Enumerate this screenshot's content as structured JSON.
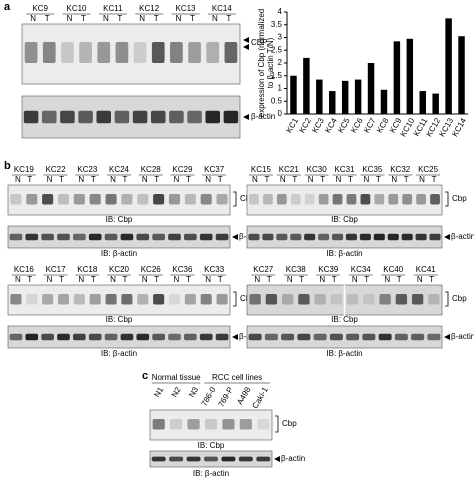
{
  "panel_a": {
    "label": "a",
    "samples": [
      "KC9",
      "KC10",
      "KC11",
      "KC12",
      "KC13",
      "KC14"
    ],
    "nt": [
      "N",
      "T"
    ],
    "band_label": "CBP",
    "actin_label": "β-actin"
  },
  "chart_data": {
    "type": "bar",
    "ylabel": [
      "expression of Cbp (normalized",
      "to β-actin T/N)"
    ],
    "categories": [
      "KC1",
      "KC2",
      "KC3",
      "KC4",
      "KC5",
      "KC6",
      "KC7",
      "KC8",
      "KC9",
      "KC10",
      "KC11",
      "KC12",
      "KC13",
      "KC14"
    ],
    "values": [
      1.5,
      2.2,
      1.35,
      0.9,
      1.3,
      1.35,
      2.0,
      0.95,
      2.85,
      2.95,
      0.9,
      0.8,
      3.75,
      3.05
    ],
    "color": "#000000",
    "ylim": [
      0,
      4
    ],
    "yticks": [
      0,
      0.5,
      1,
      1.5,
      2,
      2.5,
      3,
      3.5,
      4
    ]
  },
  "panel_b": {
    "label": "b",
    "blocks": [
      {
        "samples": [
          "KC19",
          "KC22",
          "KC23",
          "KC24",
          "KC28",
          "KC29",
          "KC37"
        ],
        "cbp_ib": "IB: Cbp",
        "actin_ib": "IB: β-actin",
        "band_label": "Cbp",
        "actin_label": "β-actin"
      },
      {
        "samples": [
          "KC15",
          "KC21",
          "KC30",
          "KC31",
          "KC35",
          "KC32",
          "KC25"
        ],
        "cbp_ib": "IB: Cbp",
        "actin_ib": "IB: β-actin",
        "band_label": "Cbp",
        "actin_label": "β-actin"
      },
      {
        "samples": [
          "KC16",
          "KC17",
          "KC18",
          "KC20",
          "KC26",
          "KC36",
          "KC33"
        ],
        "cbp_ib": "IB: Cbp",
        "actin_ib": "IB: β-actin",
        "band_label": "Cbp",
        "actin_label": "β-actin"
      },
      {
        "samples": [
          "KC27",
          "KC38",
          "KC39",
          "KC34",
          "KC40",
          "KC41"
        ],
        "cbp_ib": "IB: Cbp",
        "actin_ib": "IB: β-actin",
        "band_label": "Cbp",
        "actin_label": "β-actin"
      }
    ]
  },
  "panel_c": {
    "label": "c",
    "groups": [
      "Normal tissue",
      "RCC cell lines"
    ],
    "lanes": [
      "N1",
      "N2",
      "N3",
      "786-0",
      "769-P",
      "A498",
      "Caki-1"
    ],
    "cbp_ib": "IB: Cbp",
    "actin_ib": "IB: β-actin",
    "band_label": "Cbp",
    "actin_label": "β-actin"
  }
}
